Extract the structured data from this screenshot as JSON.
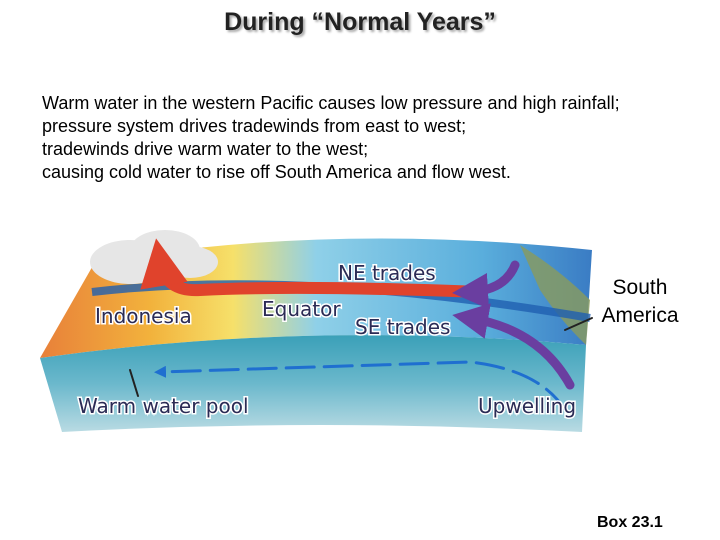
{
  "title": "During “Normal Years”",
  "body": [
    "Warm water in the western Pacific causes low pressure and high rainfall;",
    "pressure system drives tradewinds from east to west;",
    "tradewinds drive warm water to the west;",
    "causing cold water to rise off South America and flow west."
  ],
  "diagram": {
    "labels": {
      "ne_trades": "NE trades",
      "equator": "Equator",
      "se_trades": "SE trades",
      "indonesia": "Indonesia",
      "warm_pool": "Warm water pool",
      "upwelling": "Upwelling"
    }
  },
  "side_label": "South America",
  "footer": "Box 23.1"
}
